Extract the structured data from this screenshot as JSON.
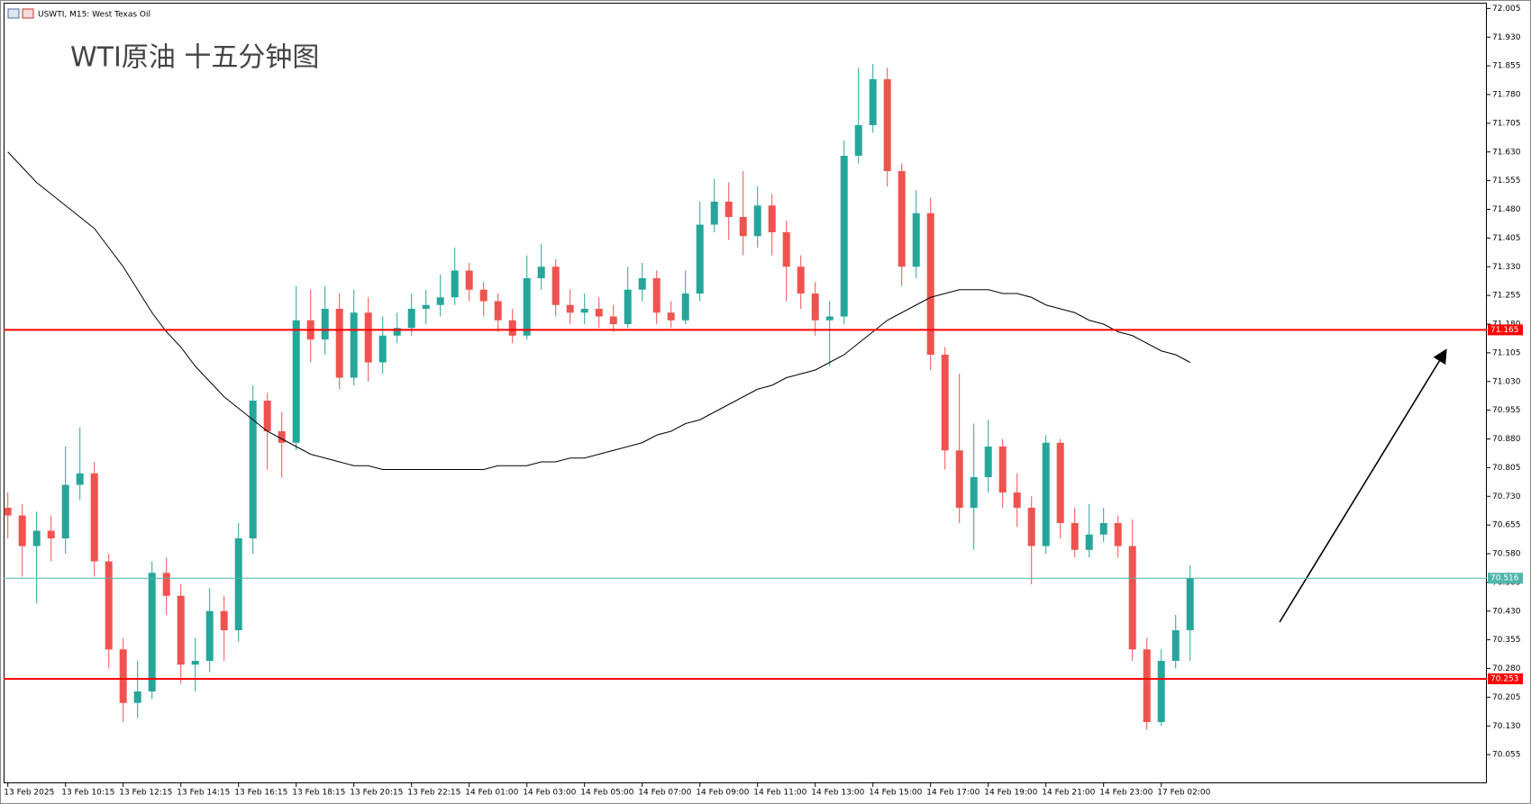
{
  "header": {
    "symbol": "USWTI, M15:  West Texas Oil"
  },
  "chart_data": {
    "type": "candlestick",
    "title": "WTI原油 十五分钟图",
    "categories": [
      "13 Feb 2025",
      null,
      null,
      null,
      "13 Feb 10:15",
      null,
      null,
      null,
      "13 Feb 12:15",
      null,
      null,
      null,
      "13 Feb 14:15",
      null,
      null,
      null,
      "13 Feb 16:15",
      null,
      null,
      null,
      "13 Feb 18:15",
      null,
      null,
      null,
      "13 Feb 20:15",
      null,
      null,
      null,
      "13 Feb 22:15",
      null,
      null,
      null,
      "14 Feb 01:00",
      null,
      null,
      null,
      "14 Feb 03:00",
      null,
      null,
      null,
      "14 Feb 05:00",
      null,
      null,
      null,
      "14 Feb 07:00",
      null,
      null,
      null,
      "14 Feb 09:00",
      null,
      null,
      null,
      "14 Feb 11:00",
      null,
      null,
      null,
      "14 Feb 13:00",
      null,
      null,
      null,
      "14 Feb 15:00",
      null,
      null,
      null,
      "14 Feb 17:00",
      null,
      null,
      null,
      "14 Feb 19:00",
      null,
      null,
      null,
      "14 Feb 21:00",
      null,
      null,
      null,
      "14 Feb 23:00",
      null,
      null,
      null,
      "17 Feb 02:00",
      null,
      null
    ],
    "open": [
      70.7,
      70.68,
      70.6,
      70.64,
      70.62,
      70.76,
      70.79,
      70.56,
      70.33,
      70.19,
      70.22,
      70.53,
      70.47,
      70.29,
      70.3,
      70.43,
      70.38,
      70.62,
      70.98,
      70.9,
      70.87,
      71.19,
      71.14,
      71.22,
      71.04,
      71.21,
      71.08,
      71.15,
      71.17,
      71.22,
      71.23,
      71.25,
      71.32,
      71.27,
      71.24,
      71.19,
      71.15,
      71.3,
      71.33,
      71.23,
      71.21,
      71.22,
      71.2,
      71.18,
      71.27,
      71.3,
      71.21,
      71.19,
      71.26,
      71.44,
      71.5,
      71.46,
      71.41,
      71.49,
      71.42,
      71.33,
      71.26,
      71.19,
      71.2,
      71.62,
      71.7,
      71.82,
      71.58,
      71.33,
      71.47,
      71.1,
      70.85,
      70.7,
      70.78,
      70.86,
      70.74,
      70.7,
      70.6,
      70.87,
      70.66,
      70.59,
      70.63,
      70.66,
      70.6,
      70.33,
      70.14,
      70.3,
      70.38
    ],
    "high": [
      70.74,
      70.71,
      70.69,
      70.68,
      70.86,
      70.91,
      70.82,
      70.58,
      70.36,
      70.3,
      70.56,
      70.57,
      70.5,
      70.36,
      70.49,
      70.47,
      70.66,
      71.02,
      71.0,
      70.95,
      71.28,
      71.27,
      71.28,
      71.26,
      71.27,
      71.25,
      71.2,
      71.21,
      71.26,
      71.27,
      71.31,
      71.38,
      71.34,
      71.29,
      71.26,
      71.22,
      71.36,
      71.39,
      71.35,
      71.27,
      71.26,
      71.25,
      71.23,
      71.33,
      71.34,
      71.32,
      71.24,
      71.32,
      71.5,
      71.56,
      71.55,
      71.58,
      71.54,
      71.52,
      71.45,
      71.36,
      71.29,
      71.24,
      71.66,
      71.85,
      71.86,
      71.85,
      71.6,
      71.53,
      71.51,
      71.12,
      71.05,
      70.92,
      70.93,
      70.88,
      70.79,
      70.73,
      70.89,
      70.88,
      70.7,
      70.71,
      70.7,
      70.68,
      70.67,
      70.36,
      70.33,
      70.42,
      70.55
    ],
    "low": [
      70.62,
      70.52,
      70.45,
      70.56,
      70.58,
      70.72,
      70.52,
      70.28,
      70.14,
      70.15,
      70.2,
      70.42,
      70.24,
      70.22,
      70.27,
      70.3,
      70.35,
      70.58,
      70.8,
      70.78,
      70.85,
      71.08,
      71.1,
      71.01,
      71.02,
      71.03,
      71.05,
      71.13,
      71.15,
      71.18,
      71.2,
      71.23,
      71.24,
      71.2,
      71.16,
      71.13,
      71.14,
      71.27,
      71.2,
      71.18,
      71.18,
      71.17,
      71.16,
      71.17,
      71.24,
      71.18,
      71.17,
      71.18,
      71.24,
      71.42,
      71.4,
      71.36,
      71.38,
      71.36,
      71.24,
      71.22,
      71.15,
      71.07,
      71.18,
      71.6,
      71.68,
      71.54,
      71.28,
      71.3,
      71.06,
      70.8,
      70.66,
      70.59,
      70.74,
      70.7,
      70.65,
      70.5,
      70.58,
      70.62,
      70.57,
      70.57,
      70.61,
      70.57,
      70.3,
      70.12,
      70.13,
      70.28,
      70.3
    ],
    "close": [
      70.68,
      70.6,
      70.64,
      70.62,
      70.76,
      70.79,
      70.56,
      70.33,
      70.19,
      70.22,
      70.53,
      70.47,
      70.29,
      70.3,
      70.43,
      70.38,
      70.62,
      70.98,
      70.9,
      70.87,
      71.19,
      71.14,
      71.22,
      71.04,
      71.21,
      71.08,
      71.15,
      71.17,
      71.22,
      71.23,
      71.25,
      71.32,
      71.27,
      71.24,
      71.19,
      71.15,
      71.3,
      71.33,
      71.23,
      71.21,
      71.22,
      71.2,
      71.18,
      71.27,
      71.3,
      71.21,
      71.19,
      71.26,
      71.44,
      71.5,
      71.46,
      71.41,
      71.49,
      71.42,
      71.33,
      71.26,
      71.19,
      71.2,
      71.62,
      71.7,
      71.82,
      71.58,
      71.33,
      71.47,
      71.1,
      70.85,
      70.7,
      70.78,
      70.86,
      70.74,
      70.7,
      70.6,
      70.87,
      70.66,
      70.59,
      70.63,
      70.66,
      70.6,
      70.33,
      70.14,
      70.3,
      70.38,
      70.516
    ],
    "up_color": "#26a69a",
    "down_color": "#ef5350",
    "ma": {
      "color": "#000000",
      "values": [
        71.63,
        71.59,
        71.55,
        71.52,
        71.49,
        71.46,
        71.43,
        71.38,
        71.33,
        71.27,
        71.21,
        71.16,
        71.12,
        71.07,
        71.03,
        70.99,
        70.96,
        70.93,
        70.9,
        70.88,
        70.86,
        70.84,
        70.83,
        70.82,
        70.81,
        70.81,
        70.8,
        70.8,
        70.8,
        70.8,
        70.8,
        70.8,
        70.8,
        70.8,
        70.81,
        70.81,
        70.81,
        70.82,
        70.82,
        70.83,
        70.83,
        70.84,
        70.85,
        70.86,
        70.87,
        70.89,
        70.9,
        70.92,
        70.93,
        70.95,
        70.97,
        70.99,
        71.01,
        71.02,
        71.04,
        71.05,
        71.06,
        71.08,
        71.1,
        71.13,
        71.16,
        71.19,
        71.21,
        71.23,
        71.25,
        71.26,
        71.27,
        71.27,
        71.27,
        71.26,
        71.26,
        71.25,
        71.23,
        71.22,
        71.21,
        71.19,
        71.18,
        71.16,
        71.15,
        71.13,
        71.11,
        71.1,
        71.08
      ]
    },
    "levels": [
      {
        "value": 71.165,
        "color": "#ff0000"
      },
      {
        "value": 70.516,
        "color": "#4db6ac"
      },
      {
        "value": 70.253,
        "color": "#ff0000"
      }
    ],
    "ylim": [
      69.98,
      72.02
    ],
    "yticks": [
      72.005,
      {
        "value": 71.93,
        "label": "71.930"
      },
      71.855,
      {
        "value": 71.78,
        "label": "71.780"
      },
      71.705,
      {
        "value": 71.63,
        "label": "71.630"
      },
      71.555,
      {
        "value": 71.48,
        "label": "71.480"
      },
      71.405,
      {
        "value": 71.33,
        "label": "71.330"
      },
      71.255,
      {
        "value": 71.18,
        "label": "71.180"
      },
      71.105,
      {
        "value": 71.03,
        "label": "71.030"
      },
      70.955,
      {
        "value": 70.88,
        "label": "70.880"
      },
      70.805,
      {
        "value": 70.73,
        "label": "70.730"
      },
      70.655,
      {
        "value": 70.58,
        "label": "70.580"
      },
      70.505,
      {
        "value": 70.43,
        "label": "70.430"
      },
      70.355,
      {
        "value": 70.28,
        "label": "70.280"
      },
      70.205,
      {
        "value": 70.13,
        "label": "70.130"
      },
      70.055
    ],
    "grid": false
  }
}
